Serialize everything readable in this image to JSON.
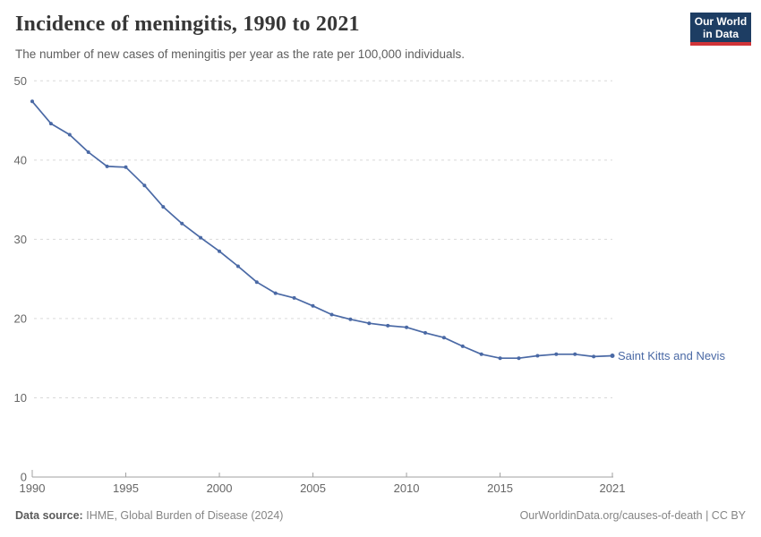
{
  "header": {
    "title": "Incidence of meningitis, 1990 to 2021",
    "subtitle": "The number of new cases of meningitis per year as the rate per 100,000 individuals."
  },
  "logo": {
    "line1": "Our World",
    "line2": "in Data"
  },
  "chart_data": {
    "type": "line",
    "title": "Incidence of meningitis, 1990 to 2021",
    "subtitle": "The number of new cases of meningitis per year as the rate per 100,000 individuals.",
    "x": [
      1990,
      1991,
      1992,
      1993,
      1994,
      1995,
      1996,
      1997,
      1998,
      1999,
      2000,
      2001,
      2002,
      2003,
      2004,
      2005,
      2006,
      2007,
      2008,
      2009,
      2010,
      2011,
      2012,
      2013,
      2014,
      2015,
      2016,
      2017,
      2018,
      2019,
      2020,
      2021
    ],
    "series": [
      {
        "name": "Saint Kitts and Nevis",
        "color": "#4a69a5",
        "values": [
          47.4,
          44.6,
          43.2,
          41.0,
          39.2,
          39.1,
          36.8,
          34.1,
          32.0,
          30.2,
          28.5,
          26.6,
          24.6,
          23.2,
          22.6,
          21.6,
          20.5,
          19.9,
          19.4,
          19.1,
          18.9,
          18.2,
          17.6,
          16.5,
          15.5,
          15.0,
          15.0,
          15.3,
          15.5,
          15.5,
          15.2,
          15.3
        ]
      }
    ],
    "xticks": [
      1990,
      1995,
      2000,
      2005,
      2010,
      2015,
      2021
    ],
    "yticks": [
      0,
      10,
      20,
      30,
      40,
      50
    ],
    "xlim": [
      1990,
      2021
    ],
    "ylim": [
      0,
      50
    ],
    "xlabel": "",
    "ylabel": "",
    "grid": "horizontal-dashed",
    "legend_position": "end-of-line-label"
  },
  "footer": {
    "source_label": "Data source:",
    "source_text": "IHME, Global Burden of Disease (2024)",
    "link_text": "OurWorldinData.org/causes-of-death | CC BY"
  },
  "colors": {
    "line": "#4a69a5",
    "grid": "#d9d9d9",
    "axis": "#a0a0a0",
    "tick_label": "#666666",
    "title": "#373737",
    "subtitle": "#5e5e5e",
    "footer_text": "#858585",
    "footer_label": "#5b5b5b",
    "logo_bg": "#1d3d63",
    "logo_stripe": "#d13438"
  }
}
